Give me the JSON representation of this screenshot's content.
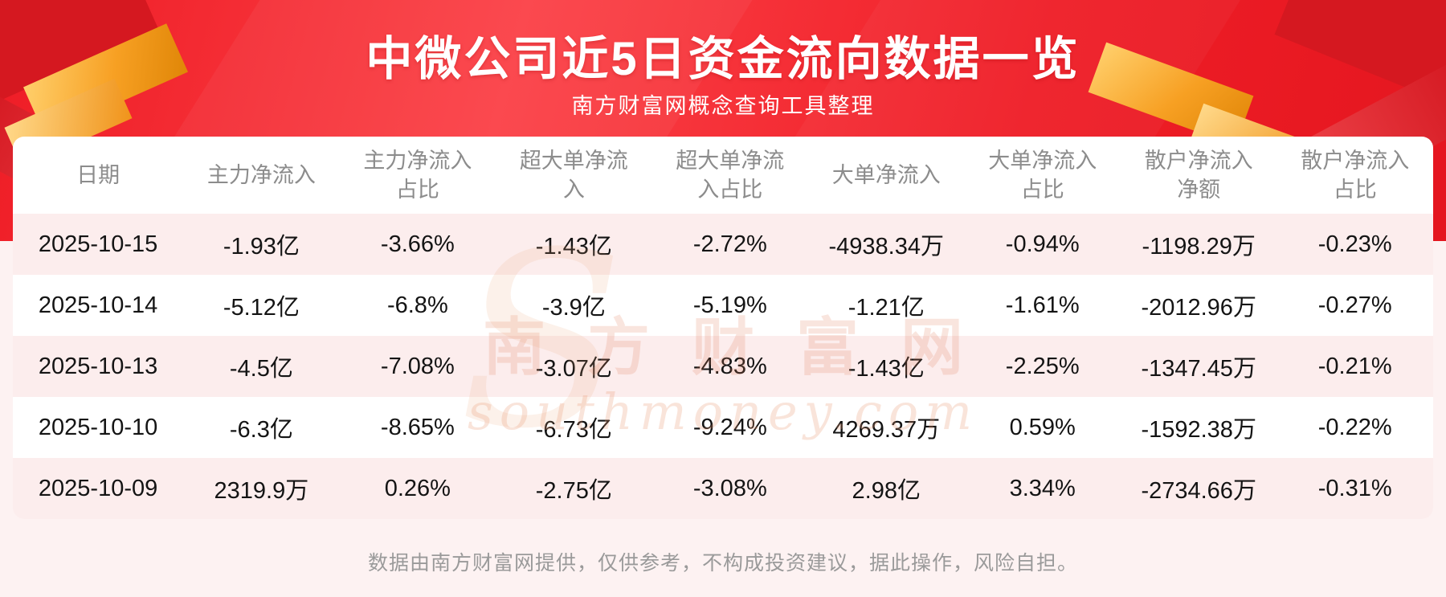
{
  "header": {
    "title": "中微公司近5日资金流向数据一览",
    "subtitle": "南方财富网概念查询工具整理"
  },
  "chart_data": {
    "type": "table",
    "title": "中微公司近5日资金流向数据一览",
    "columns": [
      "日期",
      "主力净流入",
      "主力净流入占比",
      "超大单净流入",
      "超大单净流入占比",
      "大单净流入",
      "大单净流入占比",
      "散户净流入净额",
      "散户净流入占比"
    ],
    "rows": [
      [
        "2025-10-15",
        "-1.93亿",
        "-3.66%",
        "-1.43亿",
        "-2.72%",
        "-4938.34万",
        "-0.94%",
        "-1198.29万",
        "-0.23%"
      ],
      [
        "2025-10-14",
        "-5.12亿",
        "-6.8%",
        "-3.9亿",
        "-5.19%",
        "-1.21亿",
        "-1.61%",
        "-2012.96万",
        "-0.27%"
      ],
      [
        "2025-10-13",
        "-4.5亿",
        "-7.08%",
        "-3.07亿",
        "-4.83%",
        "-1.43亿",
        "-2.25%",
        "-1347.45万",
        "-0.21%"
      ],
      [
        "2025-10-10",
        "-6.3亿",
        "-8.65%",
        "-6.73亿",
        "-9.24%",
        "4269.37万",
        "0.59%",
        "-1592.38万",
        "-0.22%"
      ],
      [
        "2025-10-09",
        "2319.9万",
        "0.26%",
        "-2.75亿",
        "-3.08%",
        "2.98亿",
        "3.34%",
        "-2734.66万",
        "-0.31%"
      ]
    ]
  },
  "watermark": {
    "text": "南方财富网",
    "subtext": "southmoney.com"
  },
  "footer": {
    "disclaimer": "数据由南方财富网提供，仅供参考，不构成投资建议，据此操作，风险自担。"
  },
  "colors": {
    "banner_red": "#ee1c25",
    "accent_gold": "#f7a023",
    "row_stripe": "#fceded",
    "header_text": "#8c8c8c",
    "cell_text": "#141414"
  }
}
